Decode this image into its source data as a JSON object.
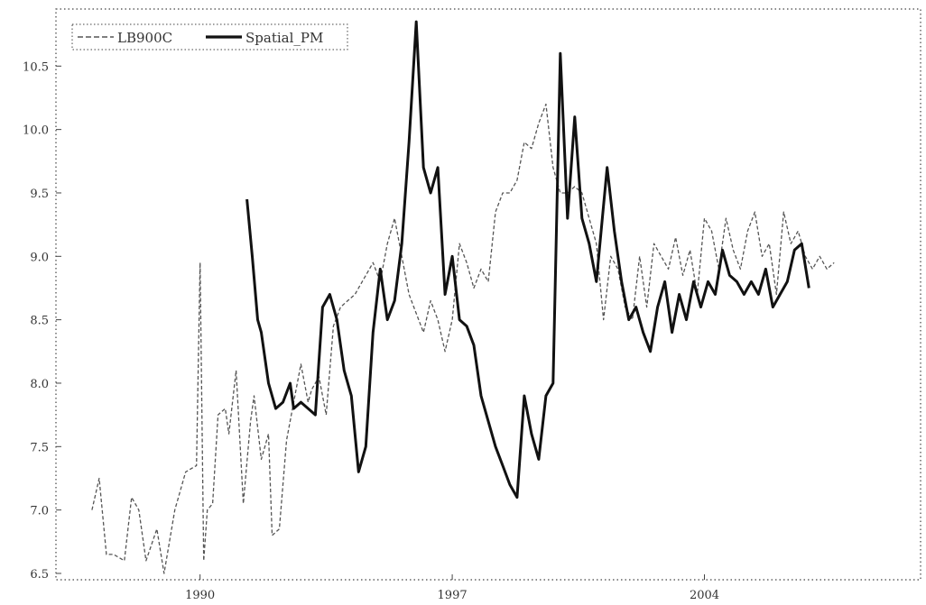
{
  "chart_data": {
    "type": "line",
    "title": "",
    "xlabel": "",
    "ylabel": "",
    "xlim": [
      1986.0,
      2010.0
    ],
    "ylim": [
      6.45,
      10.95
    ],
    "yticks": [
      6.5,
      7.0,
      7.5,
      8.0,
      8.5,
      9.0,
      9.5,
      10.0,
      10.5
    ],
    "ytick_labels": [
      "6.5",
      "7.0",
      "7.5",
      "8.0",
      "8.5",
      "9.0",
      "9.5",
      "10.0",
      "10.5"
    ],
    "xticks": [
      1990,
      1997,
      2004
    ],
    "xtick_labels": [
      "1990",
      "1997",
      "2004"
    ],
    "legend_position": "top-left",
    "series": [
      {
        "name": "LB900C",
        "style": "dashed",
        "color": "#555555",
        "x": [
          1987.0,
          1987.2,
          1987.4,
          1987.6,
          1987.9,
          1988.1,
          1988.3,
          1988.5,
          1988.8,
          1989.0,
          1989.3,
          1989.6,
          1989.9,
          1990.0,
          1990.1,
          1990.2,
          1990.35,
          1990.5,
          1990.7,
          1990.8,
          1991.0,
          1991.2,
          1991.4,
          1991.5,
          1991.7,
          1991.9,
          1992.0,
          1992.2,
          1992.4,
          1992.6,
          1992.8,
          1993.0,
          1993.1,
          1993.3,
          1993.5,
          1993.7,
          1993.9,
          1994.1,
          1994.3,
          1994.5,
          1994.7,
          1994.8,
          1995.0,
          1995.2,
          1995.4,
          1995.6,
          1995.8,
          1996.0,
          1996.2,
          1996.4,
          1996.6,
          1996.8,
          1997.0,
          1997.2,
          1997.4,
          1997.6,
          1997.8,
          1998.0,
          1998.2,
          1998.4,
          1998.6,
          1998.8,
          1999.0,
          1999.2,
          1999.4,
          1999.6,
          1999.8,
          2000.0,
          2000.2,
          2000.4,
          2000.6,
          2000.8,
          2001.0,
          2001.2,
          2001.4,
          2001.6,
          2001.8,
          2002.0,
          2002.2,
          2002.4,
          2002.6,
          2002.8,
          2003.0,
          2003.2,
          2003.4,
          2003.6,
          2003.8,
          2004.0,
          2004.2,
          2004.4,
          2004.6,
          2004.8,
          2005.0,
          2005.2,
          2005.4,
          2005.6,
          2005.8,
          2006.0,
          2006.2,
          2006.4,
          2006.6,
          2006.8,
          2007.0,
          2007.2,
          2007.4,
          2007.6
        ],
        "values": [
          7.0,
          7.25,
          6.65,
          6.65,
          6.6,
          7.1,
          7.0,
          6.6,
          6.85,
          6.5,
          7.0,
          7.3,
          7.35,
          8.95,
          6.6,
          7.0,
          7.05,
          7.75,
          7.8,
          7.6,
          8.1,
          7.05,
          7.7,
          7.9,
          7.4,
          7.6,
          6.8,
          6.85,
          7.55,
          7.85,
          8.15,
          7.85,
          7.95,
          8.05,
          7.75,
          8.45,
          8.6,
          8.65,
          8.7,
          8.8,
          8.9,
          8.95,
          8.8,
          9.1,
          9.3,
          9.0,
          8.7,
          8.55,
          8.4,
          8.65,
          8.5,
          8.25,
          8.5,
          9.1,
          8.95,
          8.75,
          8.9,
          8.8,
          9.35,
          9.5,
          9.5,
          9.6,
          9.9,
          9.85,
          10.05,
          10.2,
          9.7,
          9.5,
          9.5,
          9.55,
          9.5,
          9.3,
          9.1,
          8.5,
          9.0,
          8.9,
          8.6,
          8.5,
          9.0,
          8.6,
          9.1,
          9.0,
          8.9,
          9.15,
          8.85,
          9.05,
          8.7,
          9.3,
          9.2,
          8.9,
          9.3,
          9.05,
          8.9,
          9.2,
          9.35,
          9.0,
          9.1,
          8.7,
          9.35,
          9.1,
          9.2,
          9.0,
          8.9,
          9.0,
          8.9,
          8.95
        ],
        "note": ""
      },
      {
        "name": "Spatial_PM",
        "style": "solid",
        "color": "#111111",
        "x": [
          1991.3,
          1991.45,
          1991.6,
          1991.7,
          1991.9,
          1992.1,
          1992.3,
          1992.5,
          1992.6,
          1992.8,
          1993.0,
          1993.2,
          1993.4,
          1993.6,
          1993.8,
          1994.0,
          1994.2,
          1994.4,
          1994.6,
          1994.8,
          1995.0,
          1995.2,
          1995.4,
          1995.6,
          1995.8,
          1996.0,
          1996.2,
          1996.4,
          1996.6,
          1996.8,
          1997.0,
          1997.2,
          1997.4,
          1997.6,
          1997.8,
          1998.0,
          1998.2,
          1998.4,
          1998.6,
          1998.8,
          1999.0,
          1999.2,
          1999.4,
          1999.6,
          1999.8,
          2000.0,
          2000.2,
          2000.4,
          2000.6,
          2000.8,
          2001.0,
          2001.2,
          2001.3,
          2001.5,
          2001.7,
          2001.9,
          2002.1,
          2002.3,
          2002.5,
          2002.7,
          2002.9,
          2003.1,
          2003.3,
          2003.5,
          2003.7,
          2003.9,
          2004.1,
          2004.3,
          2004.5,
          2004.7,
          2004.9,
          2005.1,
          2005.3,
          2005.5,
          2005.7,
          2005.9,
          2006.1,
          2006.3,
          2006.5,
          2006.7,
          2006.9
        ],
        "values": [
          9.45,
          9.0,
          8.5,
          8.4,
          8.0,
          7.8,
          7.85,
          8.0,
          7.8,
          7.85,
          7.8,
          7.75,
          8.6,
          8.7,
          8.5,
          8.1,
          7.9,
          7.3,
          7.5,
          8.4,
          8.9,
          8.5,
          8.65,
          9.1,
          9.9,
          10.85,
          9.7,
          9.5,
          9.7,
          8.7,
          9.0,
          8.5,
          8.45,
          8.3,
          7.9,
          7.7,
          7.5,
          7.35,
          7.2,
          7.1,
          7.9,
          7.6,
          7.4,
          7.9,
          8.0,
          10.6,
          9.3,
          10.1,
          9.3,
          9.1,
          8.8,
          9.4,
          9.7,
          9.2,
          8.8,
          8.5,
          8.6,
          8.4,
          8.25,
          8.6,
          8.8,
          8.4,
          8.7,
          8.5,
          8.8,
          8.6,
          8.8,
          8.7,
          9.05,
          8.85,
          8.8,
          8.7,
          8.8,
          8.7,
          8.9,
          8.6,
          8.7,
          8.8,
          9.05,
          9.1,
          8.75
        ]
      }
    ]
  }
}
